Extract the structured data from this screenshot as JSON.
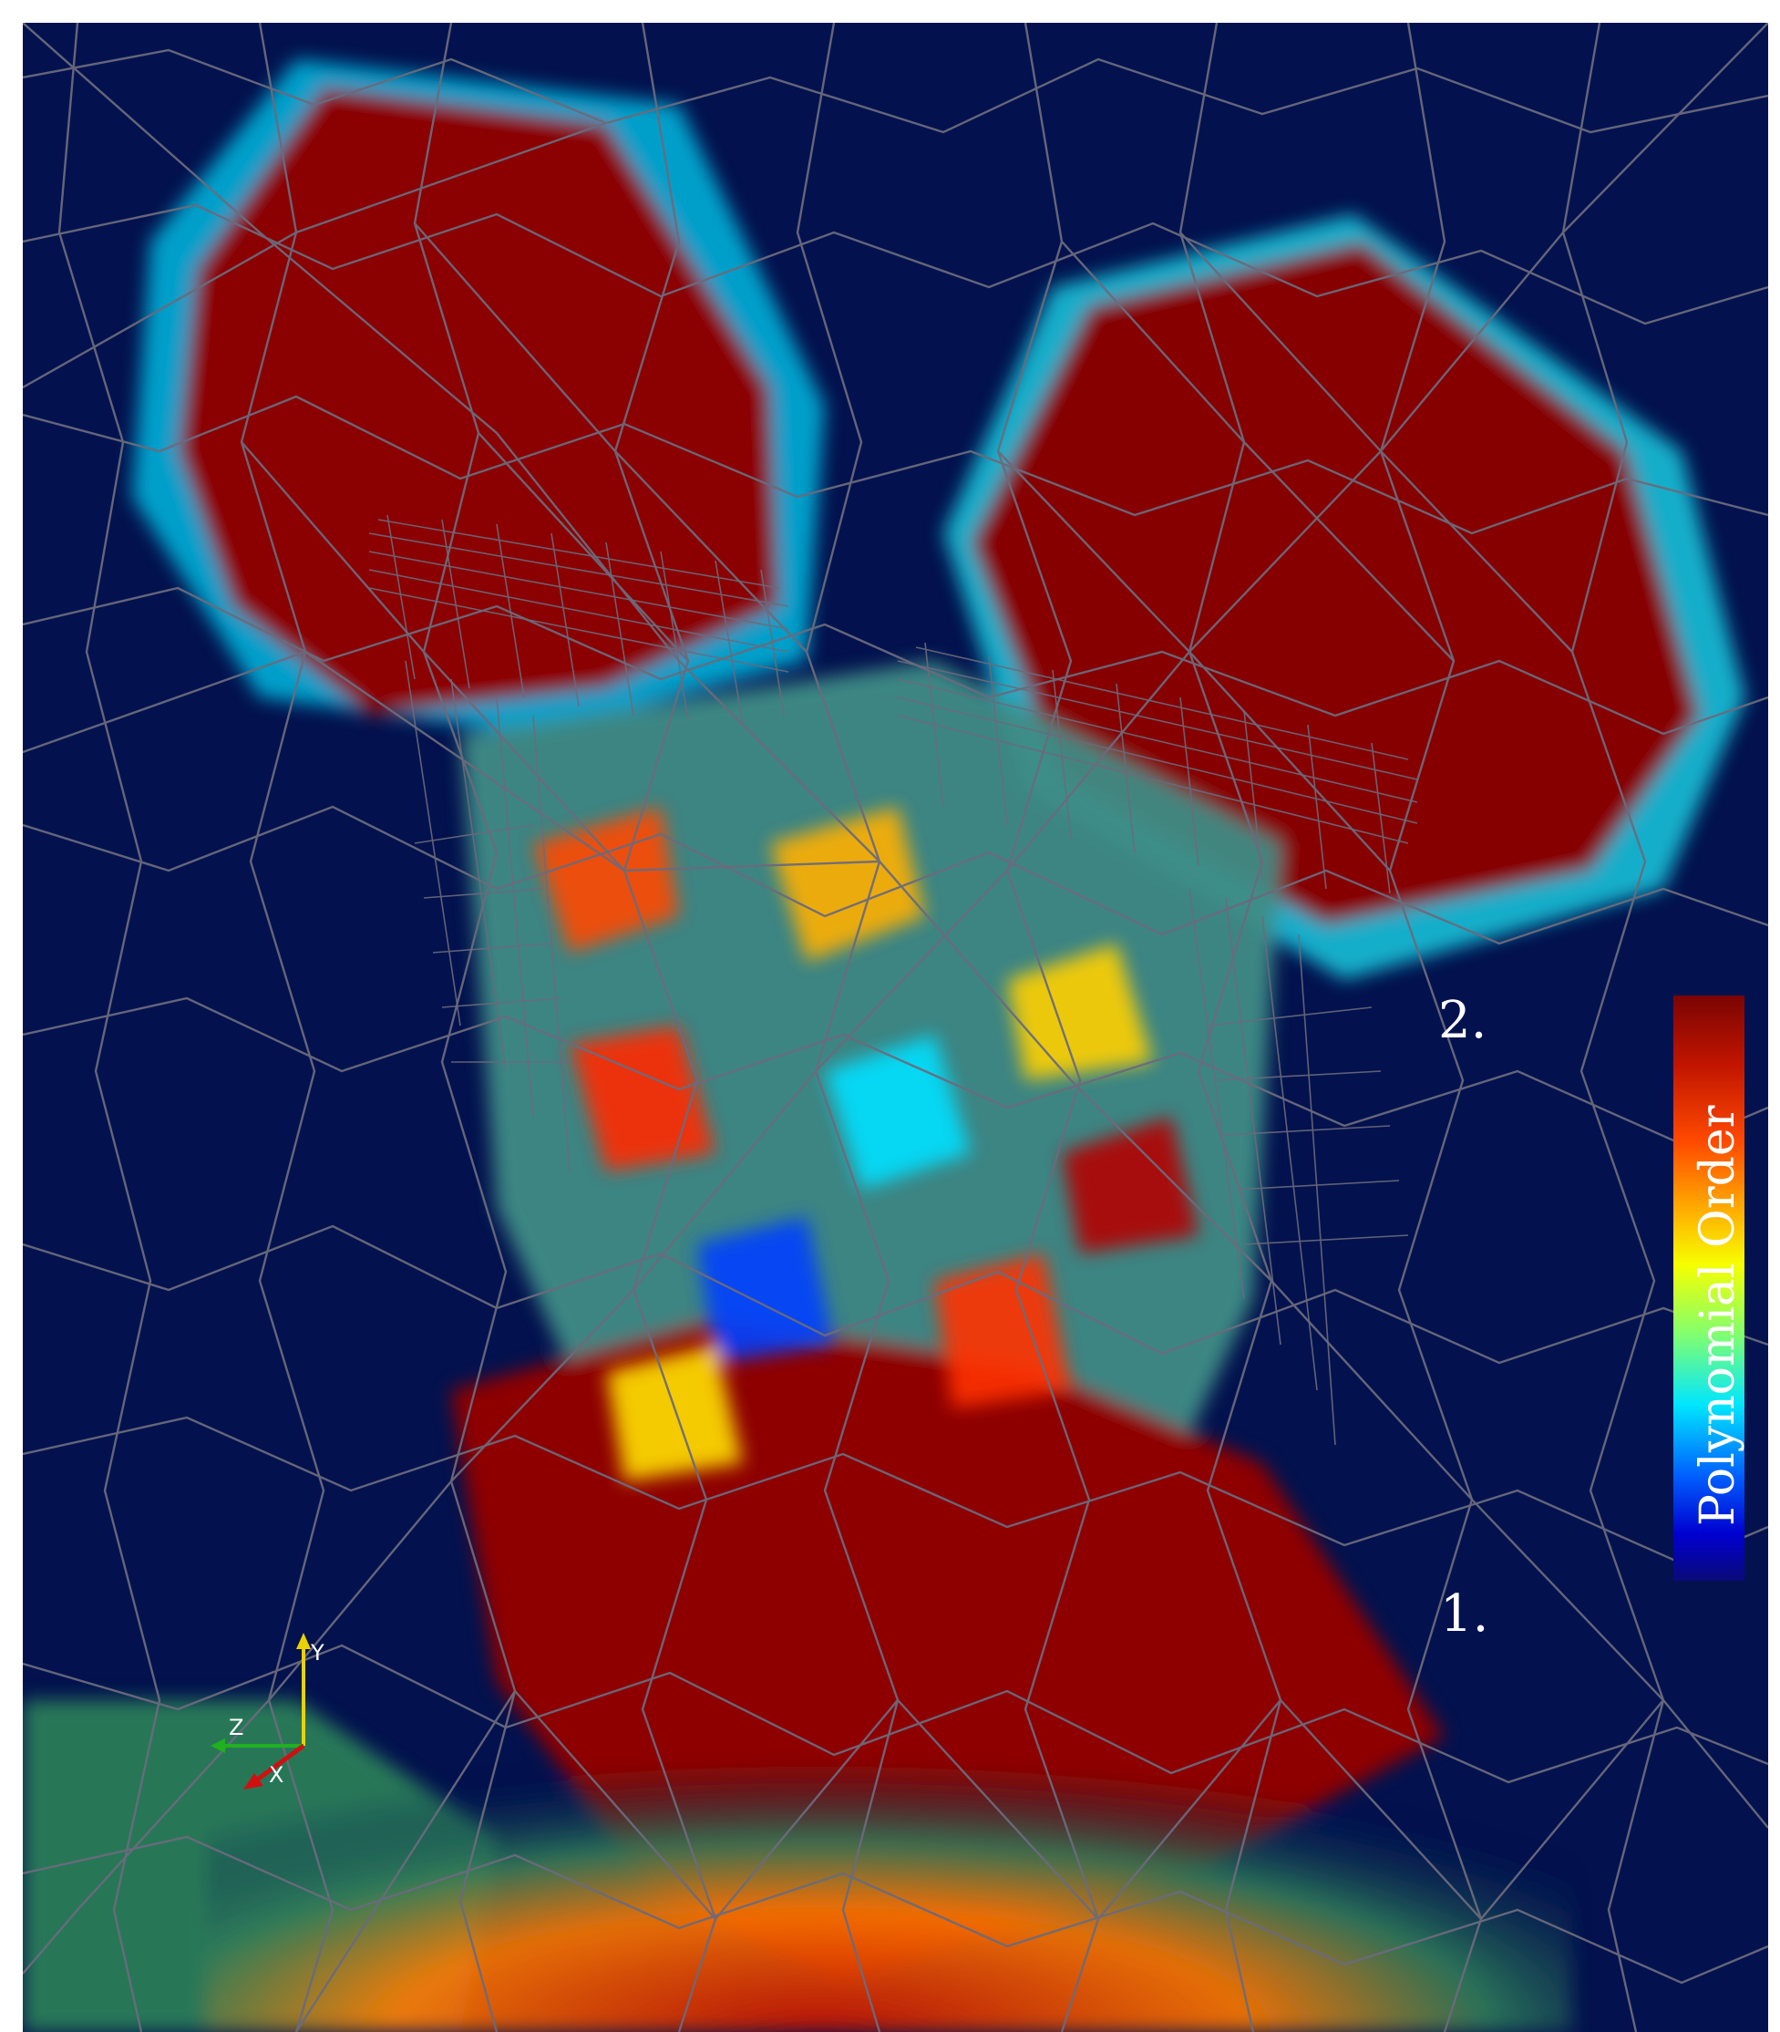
{
  "legend": {
    "title": "Polynomial Order",
    "max_label": "2.",
    "min_label": "1.",
    "colormap": [
      "#7a0403",
      "#b40f00",
      "#ff3b00",
      "#ffa000",
      "#ffff00",
      "#7dff7a",
      "#00f0ff",
      "#0064ff",
      "#0000cd",
      "#03124e"
    ]
  },
  "axes": {
    "x": "X",
    "y": "Y",
    "z": "Z"
  },
  "colors": {
    "background": "#03124e",
    "wireframe": "#6b6b7d",
    "high_order": "#7a0403",
    "low_order": "#03124e"
  }
}
